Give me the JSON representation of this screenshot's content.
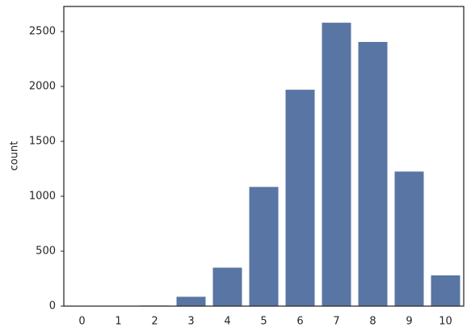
{
  "chart_data": {
    "type": "bar",
    "y_label": "count",
    "categories": [
      "0",
      "1",
      "2",
      "3",
      "4",
      "5",
      "6",
      "7",
      "8",
      "9",
      "10"
    ],
    "values": [
      2,
      3,
      5,
      85,
      350,
      1085,
      1970,
      2580,
      2405,
      1225,
      280
    ],
    "color": "#5975a4",
    "ylim": [
      0,
      2728
    ],
    "yticks": [
      0,
      500,
      1000,
      1500,
      2000,
      2500
    ],
    "grid": false
  }
}
